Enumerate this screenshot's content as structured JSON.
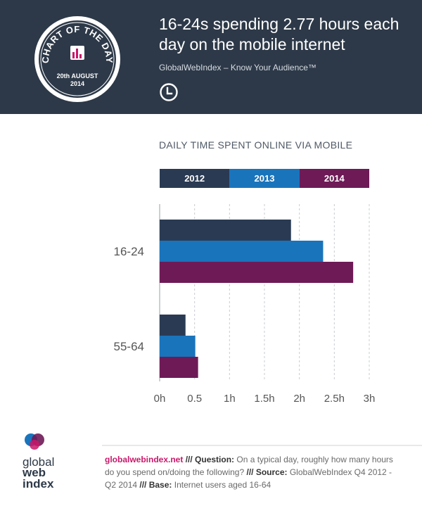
{
  "header": {
    "title": "16-24s spending 2.77 hours each day on the mobile internet",
    "subtitle": "GlobalWebIndex – Know Your Audience™",
    "badge_title": "CHART OF THE DAY",
    "badge_date_day": "20th AUGUST",
    "badge_date_year": "2014",
    "bg_color": "#2d3948"
  },
  "chart_data": {
    "type": "bar",
    "orientation": "horizontal",
    "title": "DAILY TIME SPENT ONLINE VIA MOBILE",
    "categories": [
      "16-24",
      "55-64"
    ],
    "series": [
      {
        "name": "2012",
        "color": "#2a3a53",
        "values": [
          1.88,
          0.37
        ]
      },
      {
        "name": "2013",
        "color": "#1a74bb",
        "values": [
          2.34,
          0.51
        ]
      },
      {
        "name": "2014",
        "color": "#6e1a57",
        "values": [
          2.77,
          0.55
        ]
      }
    ],
    "x_ticks": [
      "0h",
      "0.5",
      "1h",
      "1.5h",
      "2h",
      "2.5h",
      "3h"
    ],
    "xlim": [
      0,
      3
    ],
    "grid": true,
    "legend_position": "top"
  },
  "footer": {
    "logo_text": [
      "global",
      "web",
      "index"
    ],
    "site": "globalwebindex.net",
    "sep1": " /// ",
    "q_label": "Question:",
    "q_text": " On a typical day, roughly how many hours do you spend on/doing the following?",
    "sep2": " /// ",
    "s_label": "Source:",
    "s_text": " GlobalWebIndex Q4 2012 - Q2 2014",
    "sep3": " /// ",
    "b_label": "Base:",
    "b_text": " Internet users aged 16-64"
  }
}
